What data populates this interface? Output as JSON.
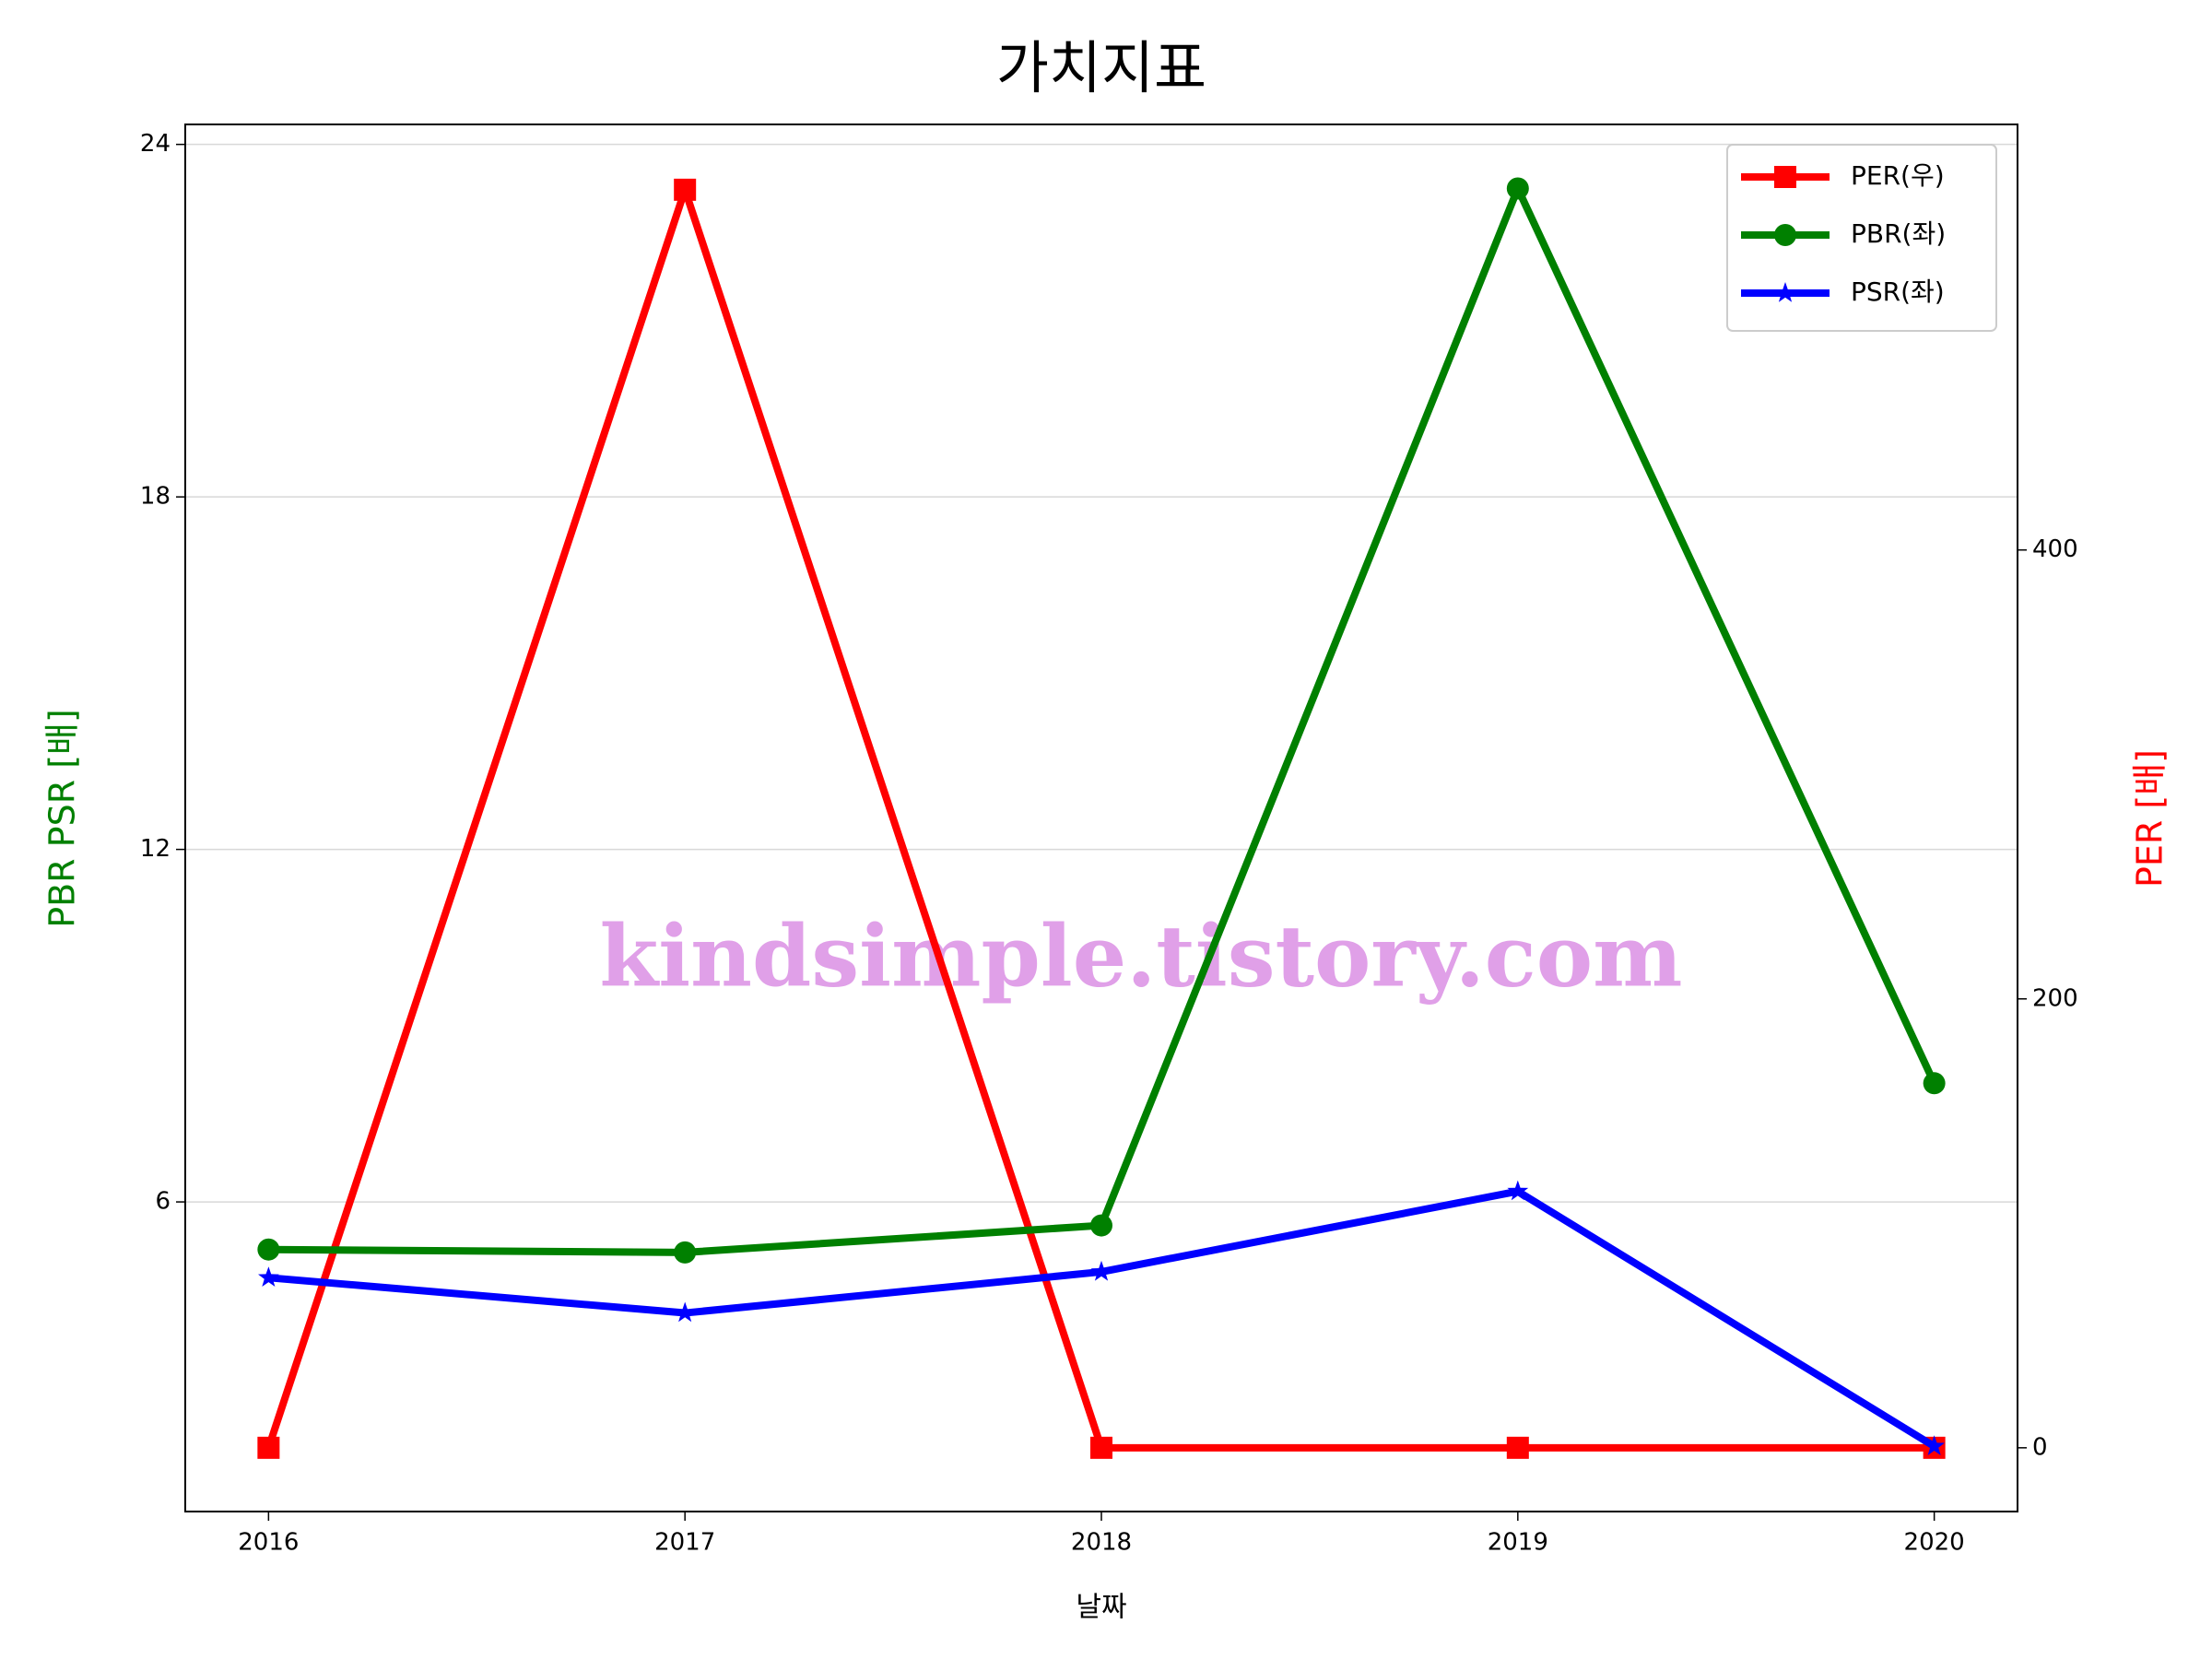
{
  "chart_data": {
    "type": "line",
    "title": "가치지표",
    "xlabel": "날짜",
    "ylabel": "PBR PSR [배]",
    "ylabel_color": "green",
    "y2label": "PER [배]",
    "y2label_color": "red",
    "watermark": "kindsimple.tistory.com",
    "x": [
      2016,
      2017,
      2018,
      2019,
      2020
    ],
    "xlim": [
      2015.8,
      2020.2
    ],
    "xticks": [
      2016,
      2017,
      2018,
      2019,
      2020
    ],
    "ylim": [
      0.73,
      24.34
    ],
    "yticks": [
      6,
      12,
      18,
      24
    ],
    "y2lim": [
      -28.4,
      589.6
    ],
    "y2ticks": [
      0,
      200,
      400
    ],
    "grid": true,
    "legend": "upper right",
    "series": [
      {
        "name": "PER(우)",
        "color": "#ff0000",
        "marker": "square",
        "axis": "y2",
        "values": [
          0,
          560.5,
          0,
          0,
          0
        ]
      },
      {
        "name": "PBR(좌)",
        "color": "#008000",
        "marker": "circle",
        "values": [
          5.19,
          5.14,
          5.6,
          23.25,
          8.02
        ]
      },
      {
        "name": "PSR(좌)",
        "color": "#0000ff",
        "marker": "star",
        "values": [
          4.71,
          4.11,
          4.81,
          6.18,
          1.84
        ]
      }
    ]
  }
}
